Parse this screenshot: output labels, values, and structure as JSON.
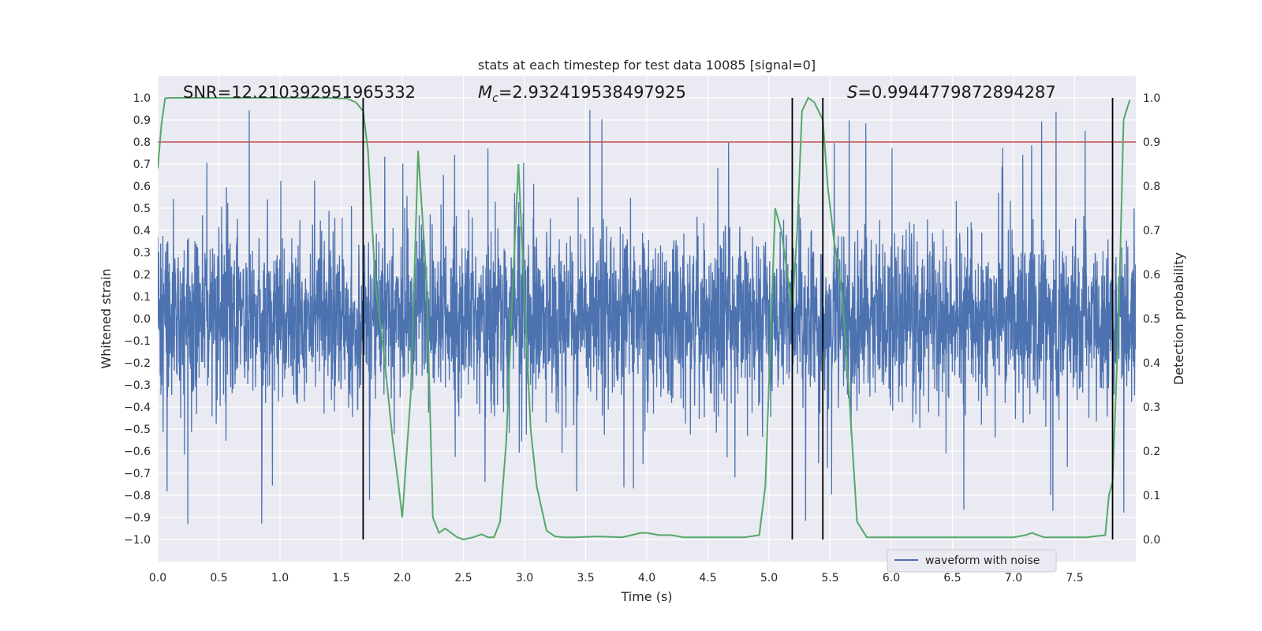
{
  "chart_data": {
    "type": "line",
    "title": "stats at each timestep for test data 10085 [signal=0]",
    "xlabel": "Time (s)",
    "ylabel": "Whitened strain",
    "y2label": "Detection probability",
    "xlim": [
      0.0,
      8.0
    ],
    "ylim": [
      -1.1,
      1.1
    ],
    "y2lim": [
      -0.05,
      1.05
    ],
    "x_ticks": [
      0.0,
      0.5,
      1.0,
      1.5,
      2.0,
      2.5,
      3.0,
      3.5,
      4.0,
      4.5,
      5.0,
      5.5,
      6.0,
      6.5,
      7.0,
      7.5
    ],
    "x_tick_labels": [
      "0.0",
      "0.5",
      "1.0",
      "1.5",
      "2.0",
      "2.5",
      "3.0",
      "3.5",
      "4.0",
      "4.5",
      "5.0",
      "5.5",
      "6.0",
      "6.5",
      "7.0",
      "7.5"
    ],
    "y_ticks": [
      1.0,
      0.9,
      0.8,
      0.7,
      0.6,
      0.5,
      0.4,
      0.3,
      0.2,
      0.1,
      0.0,
      -0.1,
      -0.2,
      -0.3,
      -0.4,
      -0.5,
      -0.6,
      -0.7,
      -0.8,
      -0.9,
      -1.0
    ],
    "y_tick_labels": [
      "1.0",
      "0.9",
      "0.8",
      "0.7",
      "0.6",
      "0.5",
      "0.4",
      "0.3",
      "0.2",
      "0.1",
      "0.0",
      "−0.1",
      "−0.2",
      "−0.3",
      "−0.4",
      "−0.5",
      "−0.6",
      "−0.7",
      "−0.8",
      "−0.9",
      "−1.0"
    ],
    "y2_ticks": [
      1.0,
      0.9,
      0.8,
      0.7,
      0.6,
      0.5,
      0.4,
      0.3,
      0.2,
      0.1,
      0.0
    ],
    "y2_tick_labels": [
      "1.0",
      "0.9",
      "0.8",
      "0.7",
      "0.6",
      "0.5",
      "0.4",
      "0.3",
      "0.2",
      "0.1",
      "0.0"
    ],
    "threshold": {
      "axis": "y2",
      "value": 0.9,
      "color": "#c44e52"
    },
    "vertical_lines": [
      1.68,
      5.19,
      5.44,
      7.81
    ],
    "annotations": {
      "snr": "SNR=12.210392951965332",
      "mc_symbol": "M",
      "mc_sub": "c",
      "mc_value": "=2.932419538497925",
      "s_symbol": "S",
      "s_value": "=0.9944779872894287"
    },
    "legend": {
      "label": "waveform with noise",
      "location": "lower-right"
    },
    "series": [
      {
        "name": "waveform with noise",
        "color": "#4c72b0",
        "kind": "noise",
        "typical_amplitude": 0.45,
        "peak_amplitude": 1.0
      },
      {
        "name": "Detection probability",
        "color": "#55a868",
        "axis": "y2",
        "x": [
          0.0,
          0.03,
          0.06,
          0.1,
          0.2,
          0.4,
          0.6,
          0.8,
          1.0,
          1.2,
          1.4,
          1.55,
          1.62,
          1.68,
          1.72,
          1.78,
          1.85,
          1.92,
          1.97,
          2.0,
          2.07,
          2.13,
          2.2,
          2.25,
          2.3,
          2.35,
          2.4,
          2.45,
          2.5,
          2.58,
          2.65,
          2.7,
          2.75,
          2.8,
          2.85,
          2.9,
          2.95,
          3.0,
          3.05,
          3.1,
          3.18,
          3.25,
          3.32,
          3.4,
          3.6,
          3.8,
          3.95,
          4.0,
          4.1,
          4.2,
          4.3,
          4.4,
          4.6,
          4.8,
          4.92,
          4.97,
          5.05,
          5.1,
          5.15,
          5.19,
          5.23,
          5.27,
          5.32,
          5.37,
          5.44,
          5.48,
          5.53,
          5.6,
          5.65,
          5.72,
          5.8,
          6.0,
          6.5,
          6.9,
          7.0,
          7.1,
          7.15,
          7.2,
          7.25,
          7.3,
          7.4,
          7.6,
          7.75,
          7.78,
          7.81,
          7.86,
          7.9,
          7.95
        ],
        "y": [
          0.84,
          0.94,
          0.999,
          1.0,
          1.0,
          1.0,
          1.0,
          1.0,
          1.0,
          1.0,
          1.0,
          0.998,
          0.99,
          0.97,
          0.88,
          0.58,
          0.42,
          0.23,
          0.12,
          0.05,
          0.33,
          0.88,
          0.58,
          0.05,
          0.015,
          0.025,
          0.015,
          0.005,
          0.0,
          0.005,
          0.012,
          0.005,
          0.005,
          0.04,
          0.22,
          0.55,
          0.85,
          0.55,
          0.25,
          0.12,
          0.02,
          0.007,
          0.005,
          0.005,
          0.007,
          0.005,
          0.015,
          0.015,
          0.01,
          0.01,
          0.005,
          0.005,
          0.005,
          0.005,
          0.01,
          0.12,
          0.75,
          0.7,
          0.6,
          0.52,
          0.7,
          0.97,
          1.0,
          0.99,
          0.95,
          0.8,
          0.68,
          0.55,
          0.35,
          0.04,
          0.005,
          0.005,
          0.005,
          0.005,
          0.005,
          0.01,
          0.015,
          0.01,
          0.005,
          0.005,
          0.005,
          0.005,
          0.01,
          0.1,
          0.13,
          0.5,
          0.95,
          0.995
        ]
      }
    ]
  }
}
